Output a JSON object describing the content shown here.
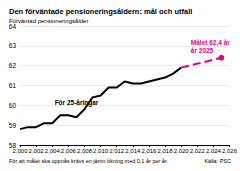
{
  "chart_data": {
    "type": "line",
    "title": "Den förväntade pensioneringsåldern: mål och utfall",
    "y_label": "Förväntad pensioneringsålder",
    "annotations": [
      "För 25-åringar",
      "Målet 62,4 år\når 2025",
      "För att målet ska uppnås krävs en jämn ökning med 0,1 år per år."
    ],
    "source": "Källa: PSC",
    "series": [
      {
        "color": "#000000",
        "line_style": "solid",
        "marker": "none",
        "x": [
          2000,
          2001,
          2002,
          2003,
          2004,
          2005,
          2006,
          2007,
          2008,
          2009,
          2010,
          2011,
          2012,
          2013,
          2014,
          2015,
          2016,
          2017,
          2018,
          2019,
          2020
        ],
        "values": [
          58.8,
          58.9,
          58.9,
          59.1,
          59.1,
          59.5,
          59.5,
          59.4,
          59.8,
          60.4,
          60.5,
          60.9,
          60.9,
          61.2,
          61.1,
          61.1,
          61.2,
          61.3,
          61.4,
          61.6,
          61.9
        ]
      },
      {
        "color": "#e6007e",
        "line_style": "dashed",
        "marker": "circle",
        "x": [
          2020,
          2025
        ],
        "values": [
          61.9,
          62.4
        ]
      }
    ],
    "xlim": [
      2000,
      2026
    ],
    "xticks": [
      2000,
      2002,
      2004,
      2006,
      2008,
      2010,
      2012,
      2014,
      2016,
      2018,
      2020,
      2022,
      2024,
      2026
    ],
    "ylim": [
      58,
      64
    ],
    "yticks": [
      58,
      59,
      60,
      61,
      62,
      63,
      64
    ],
    "grid": true
  }
}
